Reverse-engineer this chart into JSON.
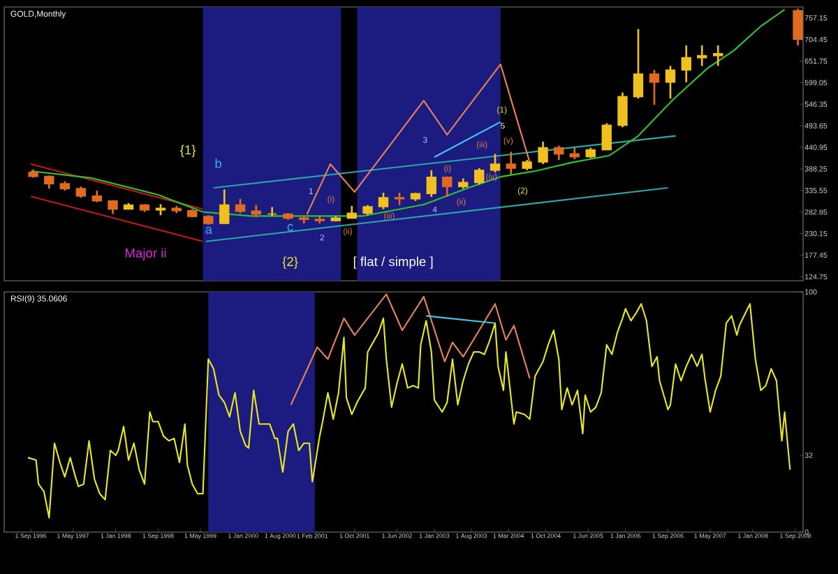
{
  "chart_data": [
    {
      "type": "candlestick",
      "title": "GOLD,Monthly",
      "xlim": [
        "1996-04-01",
        "2008-10-15"
      ],
      "ylim": [
        115,
        784
      ],
      "tick_labels": "y",
      "yticks": [
        757.15,
        704.45,
        651.75,
        599.05,
        546.35,
        493.65,
        440.95,
        388.25,
        335.55,
        282.85,
        230.15,
        177.45,
        124.75
      ],
      "bands": [
        {
          "axis": "x",
          "from": "1999-05-15",
          "to": "2001-07-15",
          "color": "#1c1c80"
        },
        {
          "axis": "x",
          "from": "2001-10-15",
          "to": "2004-01-15",
          "color": "#1c1c80"
        }
      ],
      "series": [
        {
          "type": "line",
          "color": "#c01818",
          "x": [
            "1996-09-01",
            "1999-05-15"
          ],
          "values": [
            400,
            290
          ]
        },
        {
          "type": "line",
          "color": "#c01818",
          "x": [
            "1996-09-01",
            "1999-05-15"
          ],
          "values": [
            321,
            211
          ]
        },
        {
          "type": "line",
          "color": "#2aa8a8",
          "x": [
            "1999-07-15",
            "2006-10-15"
          ],
          "values": [
            342,
            469
          ]
        },
        {
          "type": "line",
          "color": "#2aa8a8",
          "x": [
            "1999-06-01",
            "2006-09-01"
          ],
          "values": [
            211,
            342
          ]
        },
        {
          "type": "candlestick",
          "colors": [
            "#e06a20",
            "#e06a20",
            "#e06a20",
            "#e06a20",
            "#e06a20",
            "#e06a20",
            "#f0c020",
            "#e06a20",
            "#f0c020",
            "#e06a20",
            "#e06a20",
            "#e06a20",
            "#f0c020",
            "#e06a20",
            "#e06a20",
            "#f0c020",
            "#e06a20",
            "#e06a20",
            "#e06a20",
            "#f0c020",
            "#f0c020",
            "#f0c020",
            "#f0c020",
            "#e06a20",
            "#f0c020",
            "#f0c020",
            "#e06a20",
            "#f0c020",
            "#f0c020",
            "#f0c020",
            "#e06a20",
            "#f0c020",
            "#f0c020",
            "#e06a20",
            "#e06a20",
            "#f0c020",
            "#f0c020",
            "#f0c020",
            "#f0c020",
            "#e06a20",
            "#f0c020",
            "#f0c020",
            "#f0c020",
            "#f0c020",
            "#e06a20"
          ],
          "x": [
            "1996-09-15",
            "1996-12-15",
            "1997-03-15",
            "1997-06-15",
            "1997-09-15",
            "1997-12-15",
            "1998-03-15",
            "1998-06-15",
            "1998-09-15",
            "1998-12-15",
            "1999-03-15",
            "1999-06-15",
            "1999-09-15",
            "1999-12-15",
            "2000-03-15",
            "2000-06-15",
            "2000-09-15",
            "2000-12-15",
            "2001-03-15",
            "2001-06-15",
            "2001-09-15",
            "2001-12-15",
            "2002-03-15",
            "2002-06-15",
            "2002-09-15",
            "2002-12-15",
            "2003-03-15",
            "2003-06-15",
            "2003-09-15",
            "2003-12-15",
            "2004-03-15",
            "2004-06-15",
            "2004-09-15",
            "2004-12-15",
            "2005-03-15",
            "2005-06-15",
            "2005-09-15",
            "2005-12-15",
            "2006-03-15",
            "2006-06-15",
            "2006-09-15",
            "2006-12-15",
            "2007-03-15",
            "2007-06-15",
            "2008-09-15"
          ],
          "ohlc": [
            [
              380,
              387,
              367,
              370
            ],
            [
              370,
              372,
              340,
              352
            ],
            [
              352,
              358,
              335,
              340
            ],
            [
              340,
              345,
              318,
              322
            ],
            [
              322,
              335,
              307,
              310
            ],
            [
              310,
              312,
              278,
              290
            ],
            [
              290,
              305,
              290,
              300
            ],
            [
              300,
              302,
              283,
              288
            ],
            [
              288,
              302,
              275,
              292
            ],
            [
              292,
              298,
              280,
              286
            ],
            [
              286,
              290,
              270,
              272
            ],
            [
              272,
              275,
              252,
              255
            ],
            [
              255,
              338,
              254,
              300
            ],
            [
              300,
              315,
              280,
              285
            ],
            [
              285,
              300,
              270,
              278
            ],
            [
              278,
              295,
              272,
              278
            ],
            [
              278,
              280,
              264,
              268
            ],
            [
              268,
              275,
              255,
              265
            ],
            [
              265,
              272,
              255,
              262
            ],
            [
              262,
              272,
              260,
              268
            ],
            [
              268,
              298,
              268,
              280
            ],
            [
              280,
              300,
              275,
              296
            ],
            [
              296,
              330,
              290,
              318
            ],
            [
              318,
              330,
              300,
              315
            ],
            [
              315,
              330,
              310,
              328
            ],
            [
              328,
              385,
              320,
              368
            ],
            [
              368,
              370,
              320,
              345
            ],
            [
              345,
              365,
              340,
              355
            ],
            [
              355,
              390,
              350,
              385
            ],
            [
              385,
              425,
              380,
              400
            ],
            [
              400,
              430,
              375,
              390
            ],
            [
              390,
              410,
              385,
              405
            ],
            [
              405,
              455,
              400,
              440
            ],
            [
              440,
              445,
              410,
              425
            ],
            [
              425,
              440,
              412,
              418
            ],
            [
              418,
              440,
              415,
              435
            ],
            [
              435,
              500,
              435,
              495
            ],
            [
              495,
              575,
              490,
              565
            ],
            [
              565,
              730,
              560,
              620
            ],
            [
              620,
              630,
              545,
              600
            ],
            [
              600,
              640,
              560,
              630
            ],
            [
              630,
              690,
              600,
              660
            ],
            [
              660,
              690,
              640,
              665
            ],
            [
              665,
              690,
              640,
              670
            ],
            [
              775,
              780,
              690,
              705
            ]
          ]
        },
        {
          "type": "line",
          "color": "#30c030",
          "x": [
            "1996-09-01",
            "1997-08-15",
            "1998-09-01",
            "1999-05-15",
            "2000-02-15",
            "2000-12-15",
            "2001-11-15",
            "2002-11-01",
            "2003-07-15",
            "2004-01-15",
            "2004-08-01",
            "2005-03-01",
            "2005-10-01",
            "2006-03-15",
            "2006-10-01",
            "2007-04-15",
            "2007-09-15",
            "2008-02-15",
            "2008-07-01"
          ],
          "values": [
            383,
            366,
            325,
            283,
            273,
            273,
            273,
            301,
            342,
            369,
            383,
            404,
            421,
            469,
            558,
            634,
            678,
            737,
            778
          ]
        },
        {
          "type": "line",
          "color": "#e8805a",
          "x": [
            "2001-01-01",
            "2001-05-15",
            "2001-10-01",
            "2002-11-01",
            "2003-03-15",
            "2004-01-15",
            "2004-07-01"
          ],
          "values": [
            277,
            400,
            332,
            555,
            472,
            644,
            404
          ]
        },
        {
          "type": "line",
          "color": "#40c8f0",
          "x": [
            "2003-01-01",
            "2004-01-15"
          ],
          "values": [
            417,
            503
          ]
        }
      ],
      "annotations": [
        "{1}",
        "b",
        "a",
        "c",
        "{2}",
        "Major ii",
        "[ flat / simple ]",
        "1",
        "2",
        "3",
        "4",
        "5",
        "(1)",
        "(2)",
        "(i)",
        "(ii)",
        "(iii)",
        "(i)",
        "(ii)",
        "(iii)",
        "(iv)",
        "(v)"
      ]
    },
    {
      "type": "line",
      "title": "RSI(9) 35.0606",
      "xlim": [
        "1996-04-01",
        "2008-10-15"
      ],
      "ylim": [
        0,
        100
      ],
      "yticks": [
        100,
        32,
        0
      ],
      "xticks": [
        {
          "value": "1996-09-01",
          "label": "1 Sep 1996"
        },
        {
          "value": "1997-05-01",
          "label": "1 May 1997"
        },
        {
          "value": "1998-01-01",
          "label": "1 Jan 1998"
        },
        {
          "value": "1998-09-01",
          "label": "1 Sep 1998"
        },
        {
          "value": "1999-05-01",
          "label": "1 May 1999"
        },
        {
          "value": "2000-01-01",
          "label": "1 Jan 2000"
        },
        {
          "value": "2000-08-01",
          "label": "1 Aug 2000"
        },
        {
          "value": "2001-02-01",
          "label": "1 Feb 2001"
        },
        {
          "value": "2001-10-01",
          "label": "1 Oct 2001"
        },
        {
          "value": "2002-06-01",
          "label": "1 Jun 2002"
        },
        {
          "value": "2003-01-01",
          "label": "1 Jan 2003"
        },
        {
          "value": "2003-08-01",
          "label": "1 Aug 2003"
        },
        {
          "value": "2004-03-01",
          "label": "1 Mar 2004"
        },
        {
          "value": "2004-10-01",
          "label": "1 Oct 2004"
        },
        {
          "value": "2005-06-01",
          "label": "1 Jun 2005"
        },
        {
          "value": "2006-01-01",
          "label": "1 Jan 2006"
        },
        {
          "value": "2006-09-01",
          "label": "1 Sep 2006"
        },
        {
          "value": "2007-05-01",
          "label": "1 May 2007"
        },
        {
          "value": "2008-01-01",
          "label": "1 Jan 2008"
        },
        {
          "value": "2008-09-01",
          "label": "1 Sep 2008"
        }
      ],
      "bands": [
        {
          "axis": "x",
          "from": "1999-06-15",
          "to": "2001-02-15",
          "color": "#1c1c80"
        }
      ],
      "series": [
        {
          "color": "#e8e820",
          "x": [
            "1996-08-15",
            "1996-10-01",
            "1996-10-15",
            "1996-11-15",
            "1996-12-15",
            "1997-01-15",
            "1997-02-15",
            "1997-03-15",
            "1997-04-15",
            "1997-05-15",
            "1997-06-01",
            "1997-07-01",
            "1997-08-01",
            "1997-09-01",
            "1997-10-01",
            "1997-11-01",
            "1997-12-01",
            "1998-01-01",
            "1998-01-15",
            "1998-02-15",
            "1998-03-15",
            "1998-04-15",
            "1998-05-15",
            "1998-06-15",
            "1998-07-15",
            "1998-08-01",
            "1998-09-01",
            "1998-10-01",
            "1998-11-01",
            "1998-12-01",
            "1999-01-01",
            "1999-02-01",
            "1999-02-15",
            "1999-03-15",
            "1999-04-15",
            "1999-05-15",
            "1999-06-15",
            "1999-07-15",
            "1999-08-15",
            "1999-09-15",
            "1999-10-15",
            "1999-11-15",
            "1999-12-15",
            "2000-01-15",
            "2000-02-01",
            "2000-03-01",
            "2000-04-01",
            "2000-05-01",
            "2000-06-01",
            "2000-07-01",
            "2000-07-15",
            "2000-08-15",
            "2000-09-15",
            "2000-10-15",
            "2000-11-15",
            "2000-12-15",
            "2001-01-15",
            "2001-02-01",
            "2001-03-15",
            "2001-04-01",
            "2001-05-01",
            "2001-06-01",
            "2001-07-01",
            "2001-08-01",
            "2001-08-15",
            "2001-09-15",
            "2001-10-15",
            "2001-12-01",
            "2001-12-15",
            "2002-01-15",
            "2002-02-15",
            "2002-03-15",
            "2002-04-01",
            "2002-05-01",
            "2002-06-01",
            "2002-07-01",
            "2002-08-01",
            "2002-09-01",
            "2002-10-01",
            "2002-10-15",
            "2002-11-15",
            "2002-12-15",
            "2003-01-01",
            "2003-02-15",
            "2003-03-15",
            "2003-04-15",
            "2003-05-15",
            "2003-06-15",
            "2003-07-15",
            "2003-08-15",
            "2003-09-15",
            "2003-10-15",
            "2003-11-15",
            "2003-12-15",
            "2004-01-01",
            "2004-02-01",
            "2004-02-15",
            "2004-04-01",
            "2004-04-15",
            "2004-06-01",
            "2004-07-01",
            "2004-08-01",
            "2004-09-15",
            "2004-10-15",
            "2004-11-15",
            "2004-12-15",
            "2005-01-01",
            "2005-02-01",
            "2005-03-01",
            "2005-04-01",
            "2005-05-01",
            "2005-05-15",
            "2005-06-15",
            "2005-07-15",
            "2005-08-15",
            "2005-09-15",
            "2005-10-15",
            "2005-11-15",
            "2005-12-15",
            "2006-01-01",
            "2006-02-01",
            "2006-03-01",
            "2006-04-01",
            "2006-05-01",
            "2006-06-01",
            "2006-07-01",
            "2006-07-15",
            "2006-09-01",
            "2006-09-15",
            "2006-10-15",
            "2006-11-15",
            "2006-12-15",
            "2007-01-15",
            "2007-02-15",
            "2007-03-15",
            "2007-04-01",
            "2007-05-01",
            "2007-06-01",
            "2007-07-01",
            "2007-08-01",
            "2007-09-01",
            "2007-10-01",
            "2007-10-15",
            "2007-12-01",
            "2007-12-15",
            "2008-01-15",
            "2008-02-15",
            "2008-03-15",
            "2008-04-15",
            "2008-05-15",
            "2008-06-15",
            "2008-07-01",
            "2008-08-01"
          ],
          "values": [
            31,
            30,
            20,
            17,
            6,
            37,
            29,
            23,
            31,
            23,
            19,
            20,
            38,
            22,
            16,
            13.5,
            34,
            32,
            34,
            44,
            30,
            37,
            26,
            20,
            50,
            46,
            46,
            40,
            38,
            39,
            29,
            45,
            28,
            20,
            16,
            16,
            72,
            68,
            57,
            54,
            48,
            58,
            42,
            36,
            35,
            59,
            45,
            45,
            45,
            39,
            39,
            25,
            42,
            45,
            34,
            37,
            37,
            21,
            40,
            46,
            58,
            47,
            58,
            81,
            56,
            49,
            54,
            60,
            75,
            79,
            83,
            89,
            72,
            52,
            62,
            70,
            60,
            61,
            60,
            78,
            88,
            75,
            55,
            50,
            54,
            72,
            53,
            63,
            70,
            75,
            75,
            74,
            80,
            87,
            69,
            59,
            75,
            45,
            50,
            49,
            47,
            65,
            71,
            78,
            84,
            72,
            51,
            60,
            53,
            59,
            41,
            57,
            50,
            52,
            58,
            78,
            74,
            83,
            89,
            93,
            88,
            91,
            95,
            88,
            69,
            73,
            63,
            51,
            53,
            70,
            63,
            69,
            74,
            69,
            74,
            64,
            50,
            59,
            65,
            87,
            90,
            82,
            86,
            93,
            95,
            72,
            59,
            61,
            68,
            63,
            38,
            50,
            26
          ]
        },
        {
          "color": "#e8805a",
          "x": [
            "2000-10-01",
            "2001-03-01",
            "2001-05-01",
            "2001-08-01",
            "2001-10-01",
            "2002-04-01",
            "2002-07-01",
            "2002-11-01",
            "2003-03-01",
            "2003-04-15",
            "2003-06-15",
            "2003-12-15",
            "2004-02-15",
            "2004-04-01",
            "2004-07-01"
          ],
          "values": [
            53,
            77,
            72,
            89,
            82,
            99,
            84,
            98,
            71,
            79,
            73,
            95,
            80,
            86,
            64
          ]
        },
        {
          "color": "#40c8f0",
          "x": [
            "2002-11-15",
            "2003-12-15"
          ],
          "values": [
            90,
            87
          ]
        }
      ]
    }
  ]
}
